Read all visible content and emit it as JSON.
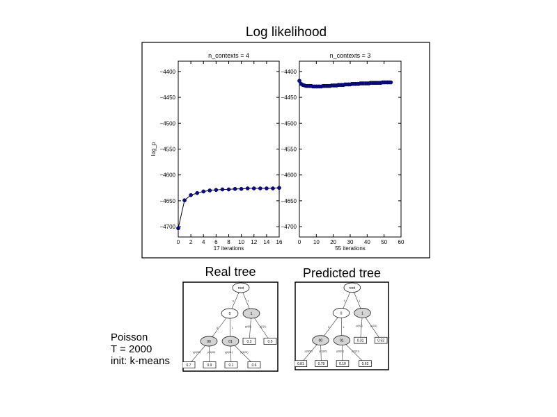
{
  "figure": {
    "title": "Log likelihood",
    "notes": [
      "Poisson",
      "T = 2000",
      "init: k-means"
    ]
  },
  "chart_data": [
    {
      "type": "line",
      "title": "n_contexts = 4",
      "xlabel": "17 iterations",
      "ylabel": "log_p",
      "xlim": [
        0,
        16
      ],
      "ylim": [
        -4720,
        -4380
      ],
      "xticks": [
        0,
        2,
        4,
        6,
        8,
        10,
        12,
        14,
        16
      ],
      "yticks": [
        -4400,
        -4450,
        -4500,
        -4550,
        -4600,
        -4650,
        -4700
      ],
      "color": "#0a0a8c",
      "series": [
        {
          "x": [
            0,
            1,
            2,
            3,
            4,
            5,
            6,
            7,
            8,
            9,
            10,
            11,
            12,
            13,
            14,
            15,
            16
          ],
          "y": [
            -4703,
            -4649,
            -4639,
            -4635,
            -4632,
            -4630,
            -4629,
            -4628,
            -4628,
            -4627,
            -4627,
            -4626,
            -4626,
            -4626,
            -4626,
            -4626,
            -4625
          ]
        }
      ]
    },
    {
      "type": "line",
      "title": "n_contexts = 3",
      "xlabel": "55 iterations",
      "ylabel": "",
      "xlim": [
        0,
        60
      ],
      "ylim": [
        -4720,
        -4380
      ],
      "xticks": [
        0,
        10,
        20,
        30,
        40,
        50,
        60
      ],
      "yticks": [
        -4400,
        -4450,
        -4500,
        -4550,
        -4600,
        -4650,
        -4700
      ],
      "color": "#0a0a8c",
      "series": [
        {
          "x": [
            0,
            1,
            2,
            3,
            4,
            5,
            6,
            7,
            8,
            9,
            10,
            11,
            12,
            13,
            14,
            15,
            16,
            17,
            18,
            19,
            20,
            21,
            22,
            23,
            24,
            25,
            26,
            27,
            28,
            29,
            30,
            31,
            32,
            33,
            34,
            35,
            36,
            37,
            38,
            39,
            40,
            41,
            42,
            43,
            44,
            45,
            46,
            47,
            48,
            49,
            50,
            51,
            52,
            53,
            54
          ],
          "y": [
            -4418,
            -4424,
            -4426,
            -4427,
            -4428,
            -4428,
            -4428,
            -4428,
            -4429,
            -4429,
            -4429,
            -4429,
            -4429,
            -4429,
            -4428,
            -4428,
            -4428,
            -4428,
            -4428,
            -4427,
            -4427,
            -4427,
            -4427,
            -4426,
            -4426,
            -4426,
            -4426,
            -4425,
            -4425,
            -4425,
            -4425,
            -4424,
            -4424,
            -4424,
            -4424,
            -4424,
            -4423,
            -4423,
            -4423,
            -4423,
            -4423,
            -4423,
            -4422,
            -4422,
            -4422,
            -4422,
            -4422,
            -4422,
            -4422,
            -4421,
            -4421,
            -4421,
            -4421,
            -4421,
            -4421
          ]
        }
      ]
    }
  ],
  "trees": {
    "real": {
      "title": "Real tree",
      "nodes": {
        "root": "root",
        "left": "0",
        "right": "1",
        "ll": "00",
        "lr": "01"
      },
      "edges": {
        "e_left": "0",
        "e_right": "1",
        "e_ll": "0",
        "e_lr": "1"
      },
      "leaf_values": [
        "0.7",
        "0.9",
        "0.1",
        "0.6",
        "0.3",
        "0.5"
      ],
      "probs": [
        "p(0|00)",
        "p(1|00)",
        "p(0|01)",
        "p(1|01)",
        "p(0|1)",
        "p(1|1)"
      ]
    },
    "predicted": {
      "title": "Predicted tree",
      "nodes": {
        "root": "root",
        "left": "0",
        "right": "1",
        "ll": "00",
        "lr": "01"
      },
      "edges": {
        "e_left": "0",
        "e_right": "1",
        "e_ll": "0",
        "e_lr": "1"
      },
      "leaf_values": [
        "0.81",
        "0.79",
        "0.10",
        "0.62",
        "0.31",
        "0.52"
      ],
      "probs": [
        "p(0|00)",
        "p(1|00)",
        "p(0|01)",
        "p(1|01)",
        "p(0|1)",
        "p(1|1)"
      ]
    }
  }
}
